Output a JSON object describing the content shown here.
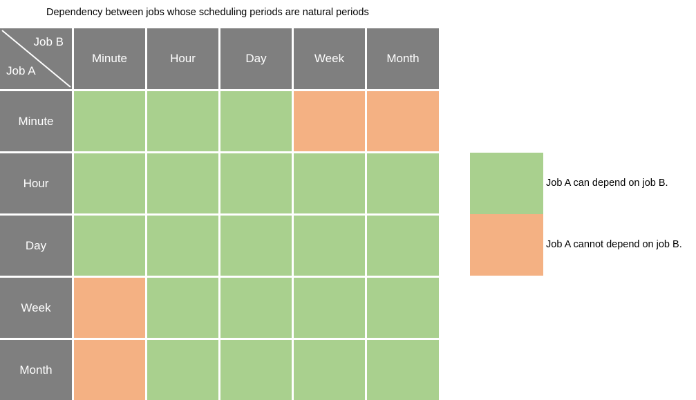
{
  "title": "Dependency between jobs whose scheduling periods are natural periods",
  "corner": {
    "column_axis": "Job B",
    "row_axis": "Job A"
  },
  "columns": [
    "Minute",
    "Hour",
    "Day",
    "Week",
    "Month"
  ],
  "rows": [
    "Minute",
    "Hour",
    "Day",
    "Week",
    "Month"
  ],
  "matrix": [
    [
      "can",
      "can",
      "can",
      "cannot",
      "cannot"
    ],
    [
      "can",
      "can",
      "can",
      "can",
      "can"
    ],
    [
      "can",
      "can",
      "can",
      "can",
      "can"
    ],
    [
      "cannot",
      "can",
      "can",
      "can",
      "can"
    ],
    [
      "cannot",
      "can",
      "can",
      "can",
      "can"
    ]
  ],
  "colors": {
    "can": "#a9d08e",
    "cannot": "#f4b183",
    "header": "#7f7f7f",
    "gap": "#ffffff"
  },
  "legend": [
    {
      "status": "can",
      "label": "Job A can depend on job B."
    },
    {
      "status": "cannot",
      "label": "Job A cannot depend on job B."
    }
  ]
}
